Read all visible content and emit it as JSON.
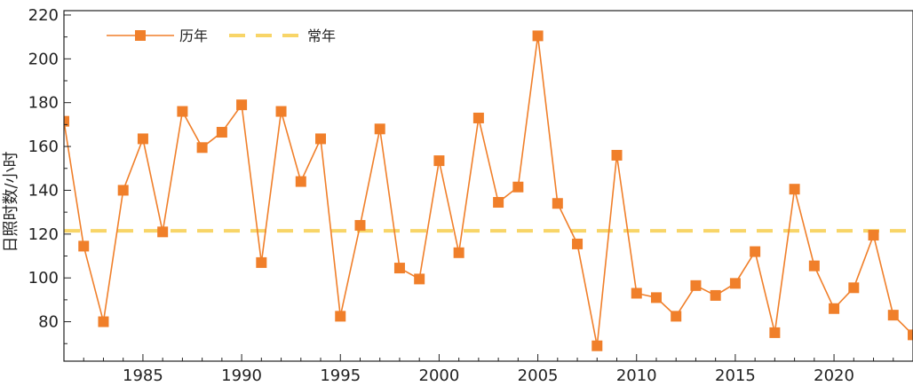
{
  "chart_data": {
    "type": "line",
    "title": "",
    "xlabel": "",
    "ylabel": "日照时数/小时",
    "xlim": [
      1981,
      2024
    ],
    "ylim": [
      62,
      222
    ],
    "xticks": [
      1985,
      1990,
      1995,
      2000,
      2005,
      2010,
      2015,
      2020
    ],
    "yticks": [
      80,
      100,
      120,
      140,
      160,
      180,
      200,
      220
    ],
    "grid": false,
    "legend_position": "top-left",
    "series": [
      {
        "name": "历年",
        "color": "#F07F2A",
        "marker": "square",
        "x": [
          1981,
          1982,
          1983,
          1984,
          1985,
          1986,
          1987,
          1988,
          1989,
          1990,
          1991,
          1992,
          1993,
          1994,
          1995,
          1996,
          1997,
          1998,
          1999,
          2000,
          2001,
          2002,
          2003,
          2004,
          2005,
          2006,
          2007,
          2008,
          2009,
          2010,
          2011,
          2012,
          2013,
          2014,
          2015,
          2016,
          2017,
          2018,
          2019,
          2020,
          2021,
          2022,
          2023,
          2024
        ],
        "values": [
          171.5,
          114.5,
          80,
          140,
          163.5,
          121,
          176,
          159.5,
          166.5,
          179,
          107,
          176,
          144,
          163.5,
          82.5,
          124,
          168,
          104.5,
          99.5,
          153.5,
          111.5,
          173,
          134.5,
          141.5,
          210.5,
          134,
          115.5,
          69,
          156,
          93,
          91,
          82.5,
          96.5,
          92,
          97.5,
          112,
          75,
          140.5,
          105.5,
          86,
          95.5,
          119.5,
          83,
          74
        ]
      },
      {
        "name": "常年",
        "color": "#F8D568",
        "style": "dashed",
        "values": [
          121.5
        ]
      }
    ]
  }
}
